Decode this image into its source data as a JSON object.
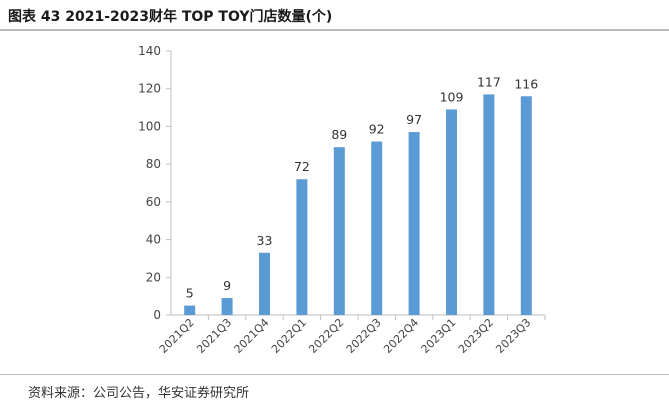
{
  "header": {
    "title": "图表 43  2021-2023财年 TOP TOY门店数量(个)"
  },
  "footer": {
    "source": "资料来源：公司公告，华安证券研究所"
  },
  "chart_data": {
    "type": "bar",
    "title": "2021-2023财年 TOP TOY门店数量(个)",
    "xlabel": "",
    "ylabel": "",
    "categories": [
      "2021Q2",
      "2021Q3",
      "2021Q4",
      "2022Q1",
      "2022Q2",
      "2022Q3",
      "2022Q4",
      "2023Q1",
      "2023Q2",
      "2023Q3"
    ],
    "values": [
      5,
      9,
      33,
      72,
      89,
      92,
      97,
      109,
      117,
      116
    ],
    "data_labels": [
      "5",
      "9",
      "33",
      "72",
      "89",
      "92",
      "97",
      "109",
      "117",
      "116"
    ],
    "y_ticks": [
      "0",
      "20",
      "40",
      "60",
      "80",
      "100",
      "120",
      "140"
    ],
    "ylim": [
      0,
      140
    ],
    "grid": false,
    "bar_color": "#5b9bd5",
    "axis_color": "#bfbfbf"
  }
}
